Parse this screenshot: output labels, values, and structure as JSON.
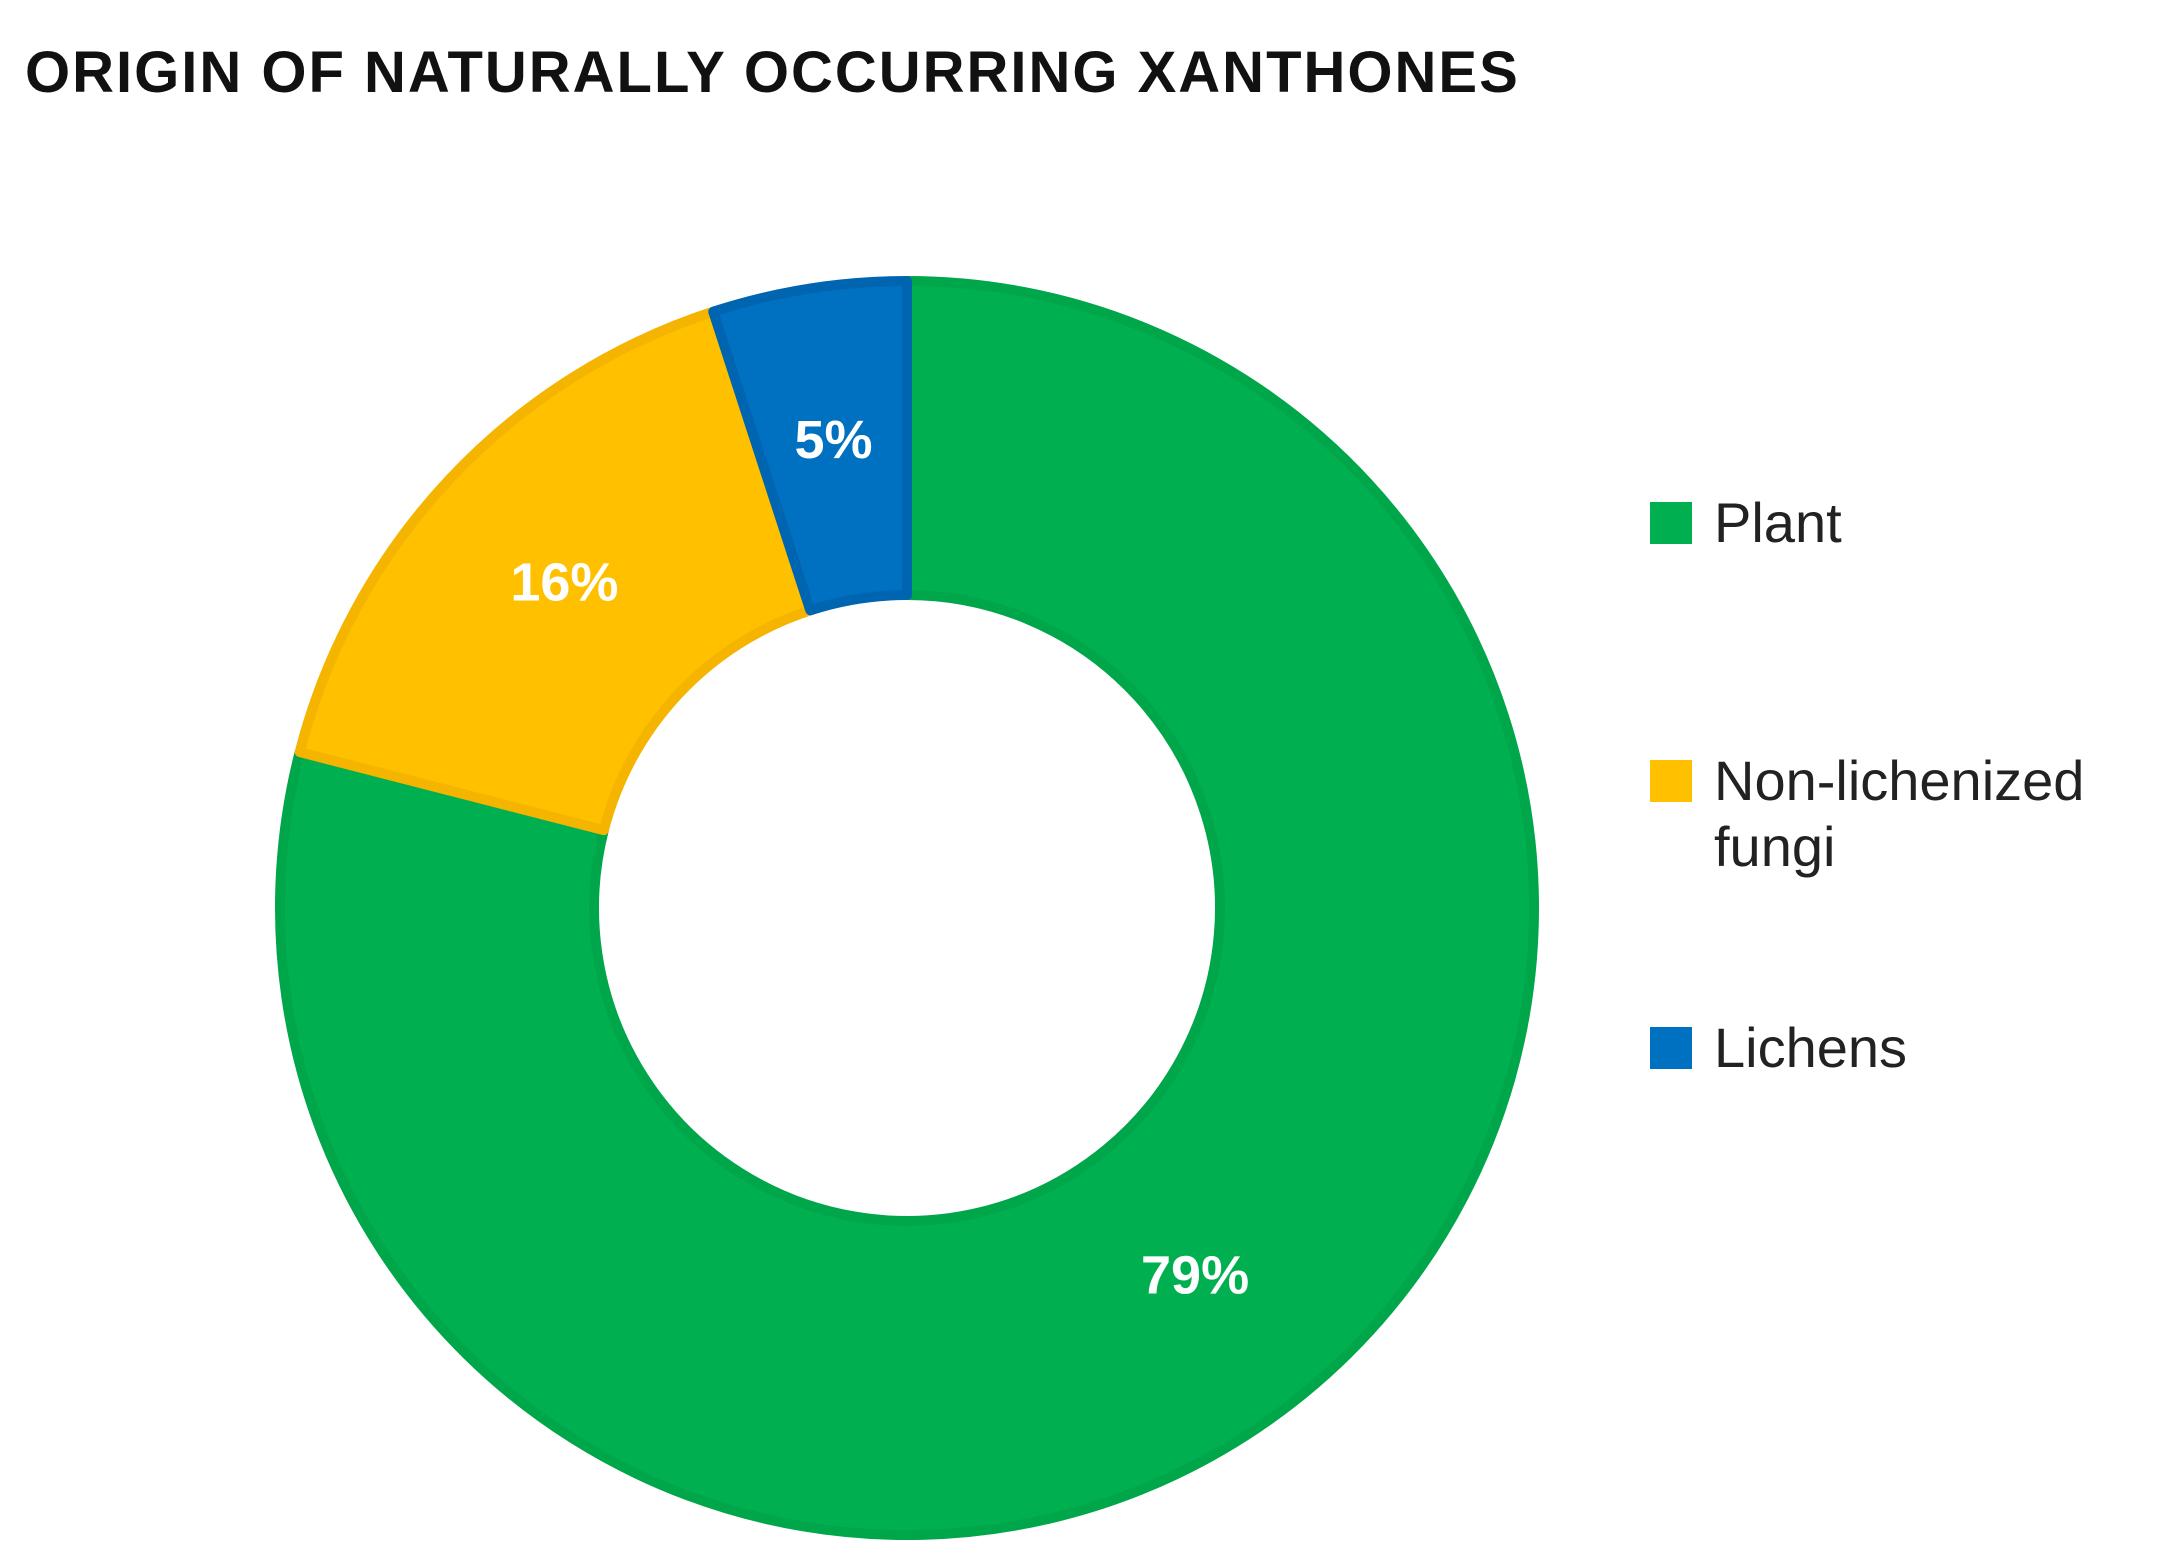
{
  "chart_data": {
    "type": "donut",
    "title": "ORIGIN OF NATURALLY OCCURRING XANTHONES",
    "categories": [
      "Plant",
      "Non-lichenized fungi",
      "Lichens"
    ],
    "values": [
      79,
      16,
      5
    ],
    "value_labels": [
      "79%",
      "16%",
      "5%"
    ],
    "colors": [
      "#00b050",
      "#ffc000",
      "#0070c0"
    ],
    "legend": "right"
  }
}
